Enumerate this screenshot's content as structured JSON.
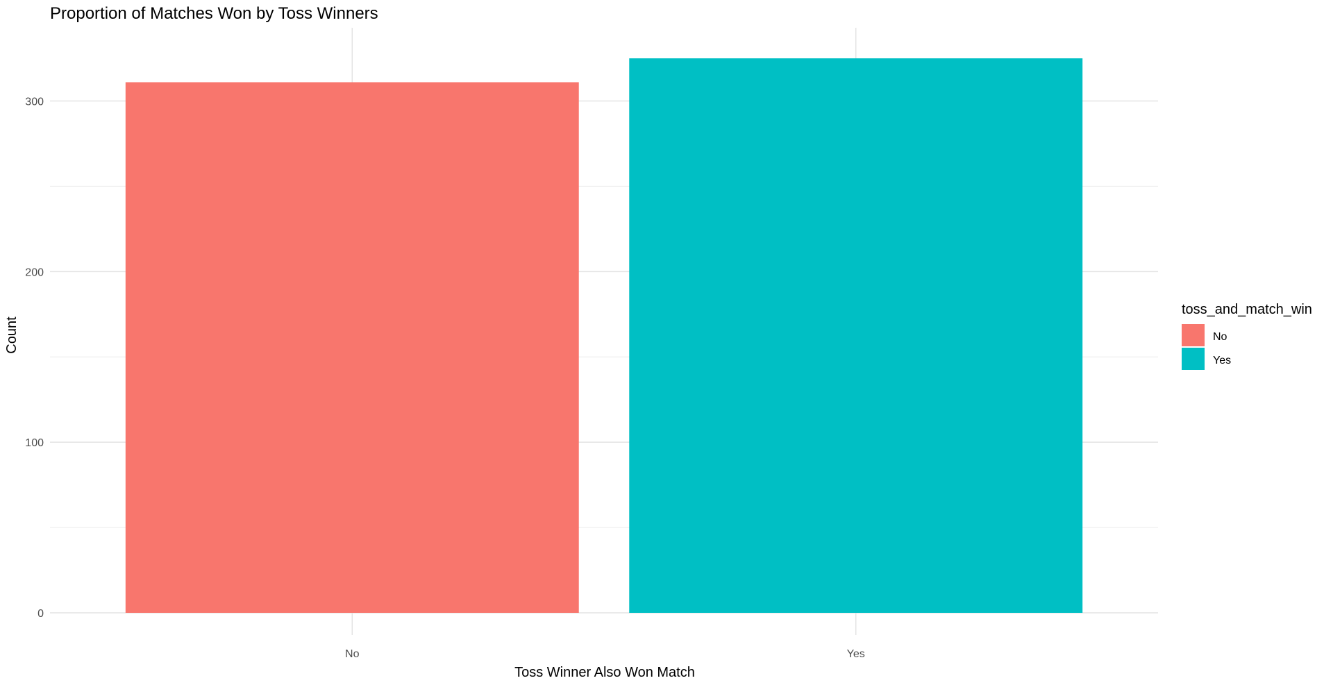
{
  "chart_data": {
    "type": "bar",
    "title": "Proportion of Matches Won by Toss Winners",
    "xlabel": "Toss Winner Also Won Match",
    "ylabel": "Count",
    "categories": [
      "No",
      "Yes"
    ],
    "values": [
      311,
      325
    ],
    "colors": [
      "#F8766D",
      "#00BFC4"
    ],
    "ylim": [
      0,
      325
    ],
    "yticks": [
      0,
      100,
      200,
      300
    ],
    "ytick_labels": [
      "0",
      "100",
      "200",
      "300"
    ],
    "grid": true,
    "legend": {
      "title": "toss_and_match_win",
      "position": "right",
      "entries": [
        {
          "label": "No",
          "color": "#F8766D"
        },
        {
          "label": "Yes",
          "color": "#00BFC4"
        }
      ]
    }
  }
}
